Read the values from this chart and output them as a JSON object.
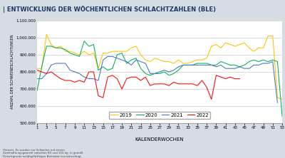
{
  "title": "| ENTWICKLUNG DER WÖCHENTLICHEN SCHLACHTZAHLEN (BLE)",
  "ylabel": "ANZAHL DER SCHWEINESCHLACHTUNGEN",
  "xlabel": "KALENDERWOCHEN",
  "footnote": "Hinweis: Es wurden nur Schweine mit einem\nZweihalftungsgewicht zwischen 80 und 110 kg, in gemäß\nFleischgesetz meldepflichtigen Betrieben berücksichtigt.",
  "ylim": [
    500000,
    1100000
  ],
  "yticks": [
    500000,
    600000,
    700000,
    800000,
    900000,
    1000000,
    1100000
  ],
  "xticks": [
    1,
    3,
    5,
    7,
    9,
    11,
    13,
    15,
    17,
    19,
    21,
    23,
    25,
    27,
    29,
    31,
    33,
    35,
    37,
    39,
    41,
    43,
    45,
    47,
    49,
    51,
    53
  ],
  "colors": {
    "2019": "#FFC000",
    "2020": "#00B050",
    "2021": "#4472C4",
    "2022": "#FF0000"
  },
  "fig_bg": "#D6DCE4",
  "plot_bg": "#FFFFFF",
  "title_bg": "#FFFFFF",
  "grid_color": "#C0C0C0",
  "data_2019": [
    820000,
    820000,
    1020000,
    960000,
    940000,
    950000,
    920000,
    920000,
    910000,
    900000,
    920000,
    900000,
    910000,
    820000,
    910000,
    910000,
    920000,
    920000,
    920000,
    920000,
    940000,
    950000,
    900000,
    870000,
    860000,
    880000,
    870000,
    860000,
    860000,
    850000,
    870000,
    850000,
    850000,
    860000,
    870000,
    870000,
    880000,
    950000,
    960000,
    940000,
    970000,
    960000,
    950000,
    960000,
    970000,
    940000,
    920000,
    940000,
    940000,
    1010000,
    1010000,
    650000,
    640000
  ],
  "data_2020": [
    690000,
    830000,
    950000,
    950000,
    940000,
    940000,
    930000,
    910000,
    900000,
    890000,
    980000,
    950000,
    960000,
    810000,
    830000,
    810000,
    820000,
    900000,
    910000,
    850000,
    870000,
    880000,
    820000,
    790000,
    780000,
    790000,
    790000,
    800000,
    780000,
    790000,
    810000,
    840000,
    840000,
    840000,
    850000,
    850000,
    850000,
    840000,
    840000,
    860000,
    850000,
    840000,
    840000,
    830000,
    840000,
    860000,
    870000,
    860000,
    870000,
    860000,
    870000,
    860000,
    540000
  ],
  "data_2021": [
    760000,
    760000,
    790000,
    840000,
    850000,
    850000,
    850000,
    810000,
    800000,
    790000,
    770000,
    760000,
    760000,
    750000,
    870000,
    890000,
    890000,
    880000,
    870000,
    860000,
    840000,
    870000,
    860000,
    850000,
    790000,
    790000,
    800000,
    810000,
    800000,
    810000,
    830000,
    840000,
    840000,
    840000,
    840000,
    840000,
    840000,
    840000,
    830000,
    840000,
    820000,
    820000,
    820000,
    830000,
    820000,
    820000,
    840000,
    840000,
    850000,
    850000,
    860000,
    620000,
    null
  ],
  "data_2022": [
    810000,
    800000,
    790000,
    800000,
    780000,
    760000,
    750000,
    750000,
    740000,
    750000,
    740000,
    800000,
    800000,
    660000,
    650000,
    770000,
    780000,
    760000,
    700000,
    760000,
    770000,
    770000,
    750000,
    770000,
    720000,
    730000,
    730000,
    730000,
    720000,
    740000,
    730000,
    730000,
    730000,
    730000,
    720000,
    750000,
    710000,
    640000,
    780000,
    770000,
    760000,
    770000,
    760000,
    760000,
    null,
    null,
    null,
    null,
    null,
    null,
    null,
    null,
    null
  ]
}
